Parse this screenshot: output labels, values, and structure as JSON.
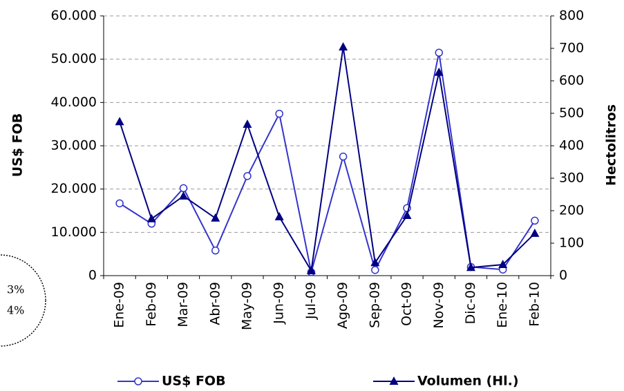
{
  "chart_data": {
    "type": "line",
    "categories": [
      "Ene-09",
      "Feb-09",
      "Mar-09",
      "Abr-09",
      "May-09",
      "Jun-09",
      "Jul-09",
      "Ago-09",
      "Sep-09",
      "Oct-09",
      "Nov-09",
      "Dic-09",
      "Ene-10",
      "Feb-10"
    ],
    "series": [
      {
        "name": "US$ FOB",
        "color": "#3333cc",
        "marker": "circle",
        "values": [
          16700,
          12000,
          20200,
          5800,
          23000,
          37400,
          800,
          27500,
          1300,
          15600,
          51500,
          2000,
          1400,
          12700
        ]
      },
      {
        "name": "Volumen (Hl.)",
        "color": "#000080",
        "marker": "triangle",
        "axis": "y2",
        "values": [
          474,
          175,
          245,
          177,
          466,
          181,
          15,
          704,
          40,
          185,
          626,
          25,
          34,
          130
        ]
      }
    ],
    "ylabel": "US$ FOB",
    "y2label": "Hectolitros",
    "ylim": [
      0,
      60000
    ],
    "yticks": [
      {
        "value": 0,
        "label": "0"
      },
      {
        "value": 10000,
        "label": "10.000"
      },
      {
        "value": 20000,
        "label": "20.000"
      },
      {
        "value": 30000,
        "label": "30.000"
      },
      {
        "value": 40000,
        "label": "40.000"
      },
      {
        "value": 50000,
        "label": "50.000"
      },
      {
        "value": 60000,
        "label": "60.000"
      }
    ],
    "y2lim": [
      0,
      800
    ],
    "y2ticks": [
      0,
      100,
      200,
      300,
      400,
      500,
      600,
      700,
      800
    ],
    "grid": true,
    "legend": "bottom",
    "annotations": [
      "3%",
      "4%"
    ]
  }
}
